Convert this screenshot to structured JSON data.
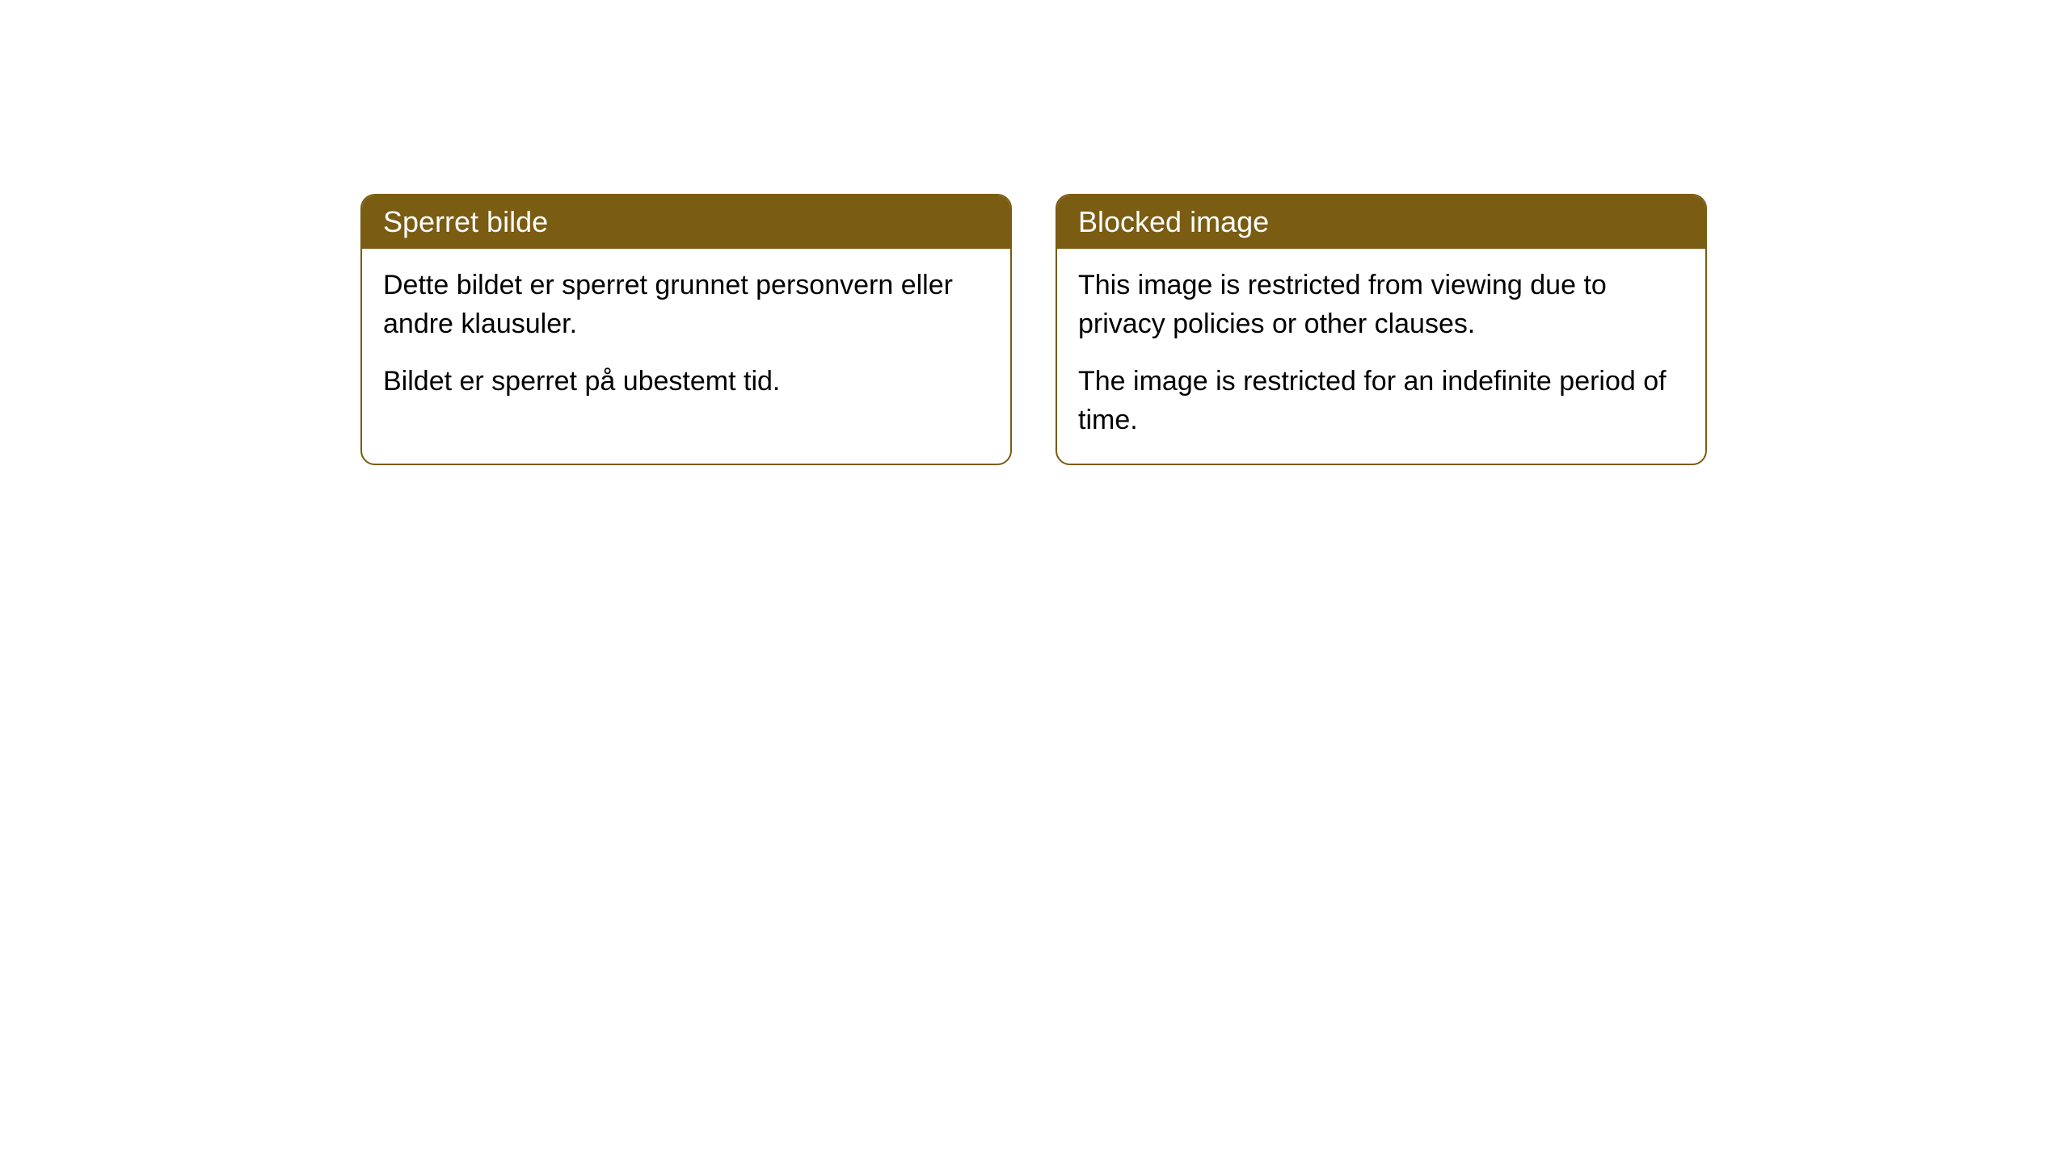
{
  "cards": [
    {
      "title": "Sperret bilde",
      "paragraph1": "Dette bildet er sperret grunnet personvern eller andre klausuler.",
      "paragraph2": "Bildet er sperret på ubestemt tid."
    },
    {
      "title": "Blocked image",
      "paragraph1": "This image is restricted from viewing due to privacy policies or other clauses.",
      "paragraph2": "The image is restricted for an indefinite period of time."
    }
  ],
  "styling": {
    "header_background": "#7a5c12",
    "header_text_color": "#ffffff",
    "border_color": "#7a5c12",
    "body_background": "#ffffff",
    "body_text_color": "#000000",
    "border_radius": 18,
    "title_fontsize": 36,
    "body_fontsize": 34
  }
}
